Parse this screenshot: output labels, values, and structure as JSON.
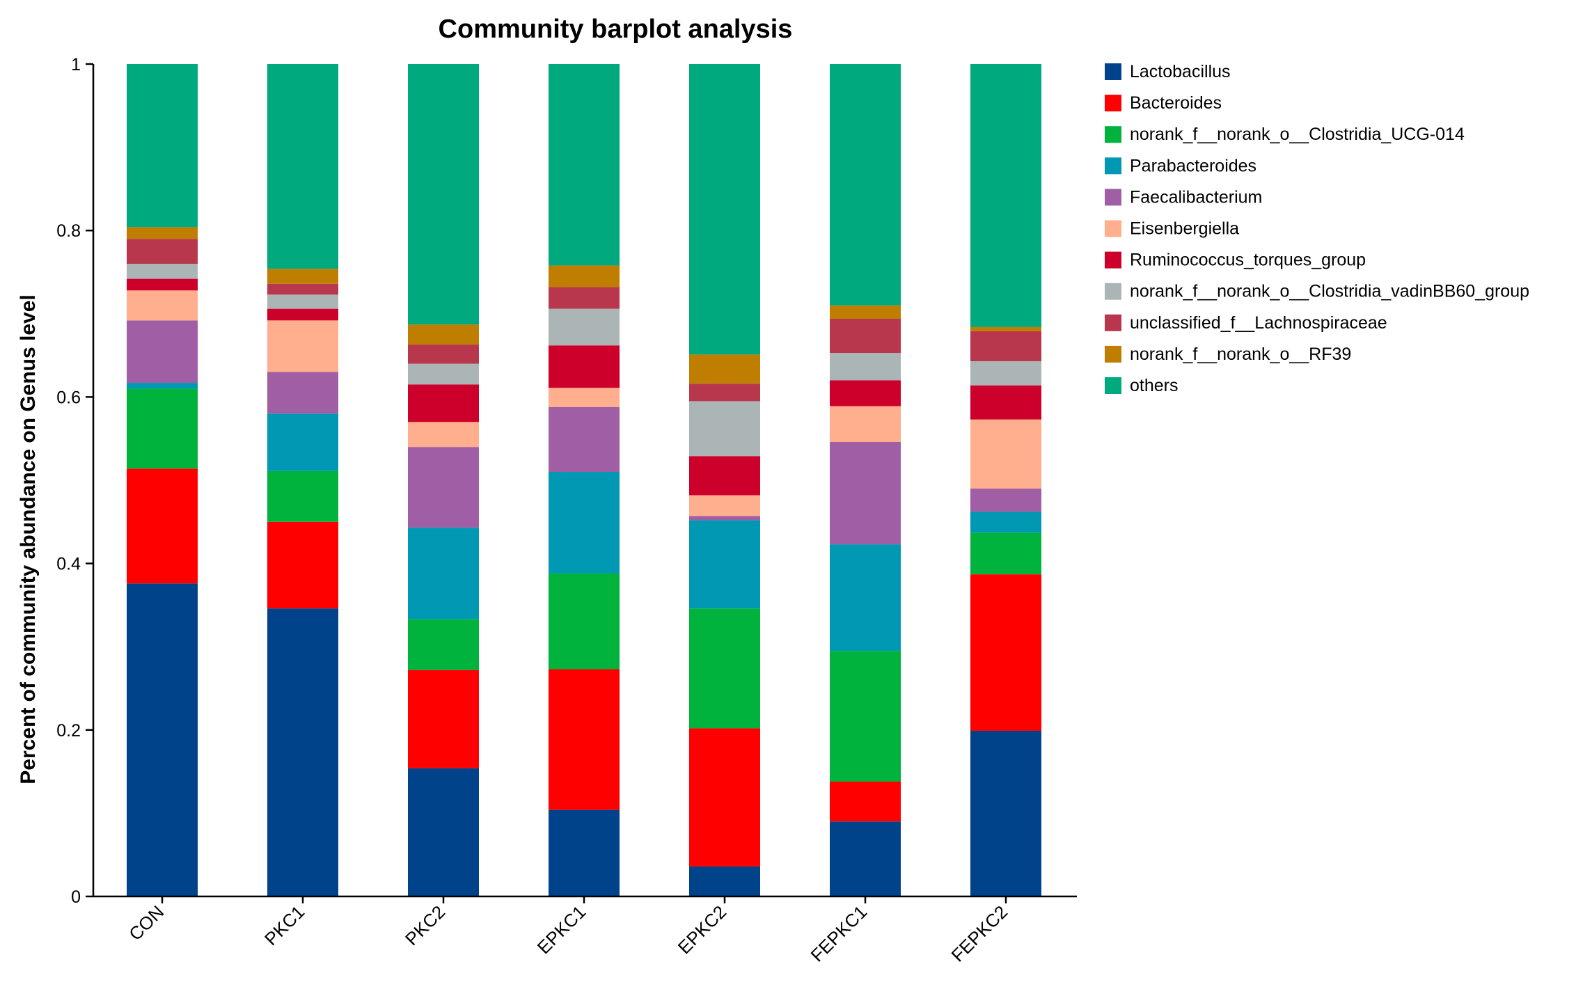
{
  "chart_data": {
    "type": "bar",
    "stacked": true,
    "title": "Community barplot analysis",
    "xlabel": "",
    "ylabel": "Percent of community abundance on Genus level",
    "ylim": [
      0,
      1
    ],
    "yticks": [
      {
        "value": 0,
        "label": "0"
      },
      {
        "value": 0.2,
        "label": "0.2"
      },
      {
        "value": 0.4,
        "label": "0.4"
      },
      {
        "value": 0.6,
        "label": "0.6"
      },
      {
        "value": 0.8,
        "label": "0.8"
      },
      {
        "value": 1,
        "label": "1"
      }
    ],
    "legend_position": "right",
    "categories": [
      "CON",
      "PKC1",
      "PKC2",
      "EPKC1",
      "EPKC2",
      "FEPKC1",
      "FEPKC2"
    ],
    "series": [
      {
        "name": "Lactobacillus",
        "color": "#00438B",
        "values": [
          0.376,
          0.346,
          0.154,
          0.104,
          0.036,
          0.09,
          0.199
        ]
      },
      {
        "name": "Bacteroides",
        "color": "#FF0000",
        "values": [
          0.138,
          0.104,
          0.118,
          0.169,
          0.166,
          0.048,
          0.188
        ]
      },
      {
        "name": "norank_f__norank_o__Clostridia_UCG-014",
        "color": "#00B33C",
        "values": [
          0.096,
          0.061,
          0.061,
          0.115,
          0.144,
          0.157,
          0.05
        ]
      },
      {
        "name": "Parabacteroides",
        "color": "#0098B2",
        "values": [
          0.007,
          0.069,
          0.11,
          0.122,
          0.106,
          0.128,
          0.025
        ]
      },
      {
        "name": "Faecalibacterium",
        "color": "#A05FA4",
        "values": [
          0.075,
          0.05,
          0.097,
          0.078,
          0.005,
          0.123,
          0.028
        ]
      },
      {
        "name": "Eisenbergiella",
        "color": "#FFAE8E",
        "values": [
          0.036,
          0.062,
          0.03,
          0.023,
          0.025,
          0.043,
          0.083
        ]
      },
      {
        "name": "Ruminococcus_torques_group",
        "color": "#CC002B",
        "values": [
          0.014,
          0.014,
          0.045,
          0.051,
          0.047,
          0.031,
          0.041
        ]
      },
      {
        "name": "norank_f__norank_o__Clostridia_vadinBB60_group",
        "color": "#ABB5B5",
        "values": [
          0.018,
          0.017,
          0.025,
          0.044,
          0.066,
          0.033,
          0.029
        ]
      },
      {
        "name": "unclassified_f__Lachnospiraceae",
        "color": "#B8374D",
        "values": [
          0.03,
          0.013,
          0.023,
          0.026,
          0.021,
          0.041,
          0.036
        ]
      },
      {
        "name": "norank_f__norank_o__RF39",
        "color": "#C07E00",
        "values": [
          0.014,
          0.018,
          0.024,
          0.026,
          0.035,
          0.016,
          0.005
        ]
      },
      {
        "name": "others",
        "color": "#00A97E",
        "values": [
          0.196,
          0.246,
          0.313,
          0.242,
          0.349,
          0.29,
          0.316
        ]
      }
    ]
  }
}
